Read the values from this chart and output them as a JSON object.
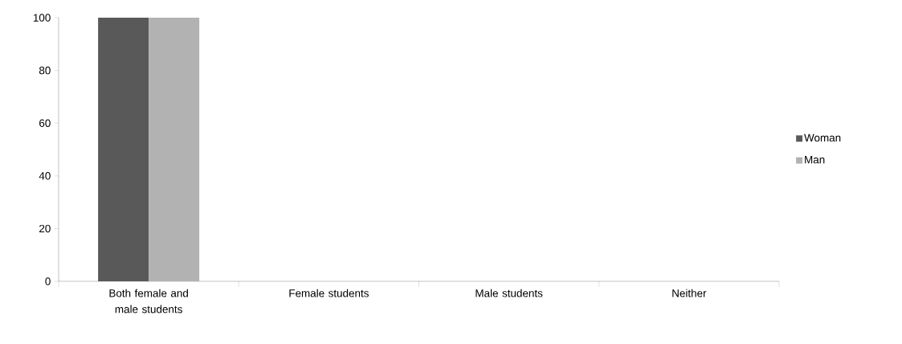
{
  "chart_data": {
    "type": "bar",
    "categories": [
      "Both female and male students",
      "Female students",
      "Male students",
      "Neither"
    ],
    "series": [
      {
        "name": "Woman",
        "color": "#595959",
        "values": [
          100,
          0,
          0,
          0
        ]
      },
      {
        "name": "Man",
        "color": "#b2b2b2",
        "values": [
          100,
          0,
          0,
          0
        ]
      }
    ],
    "ylim": [
      0,
      100
    ],
    "yticks": [
      0,
      20,
      40,
      60,
      80,
      100
    ],
    "grid": false,
    "legend": "right"
  }
}
